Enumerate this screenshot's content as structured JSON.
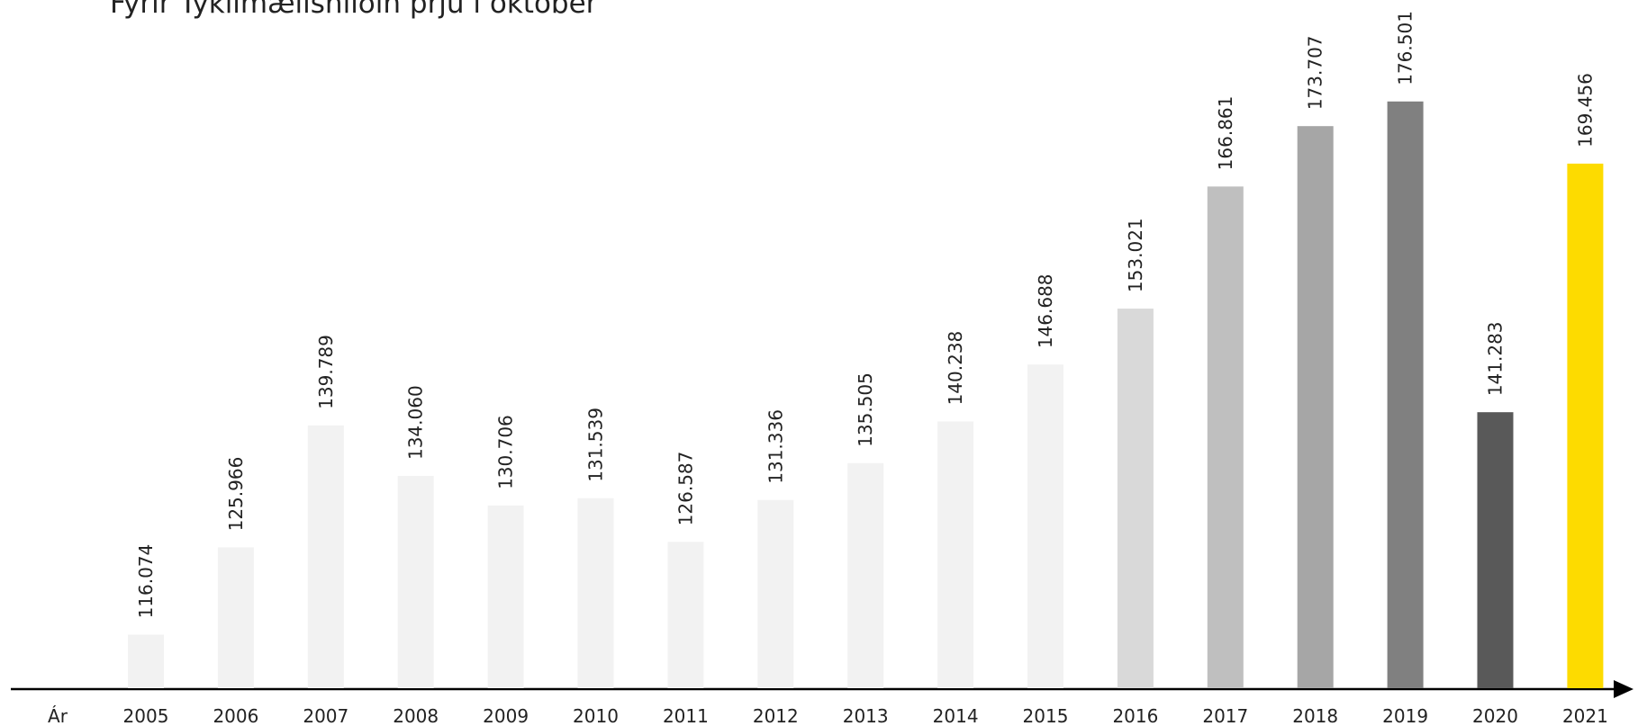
{
  "chart_data": {
    "type": "bar",
    "title": "Fyrir Tyklimælishliðin þrjú í október",
    "x_label": "Ár",
    "categories": [
      "2005",
      "2006",
      "2007",
      "2008",
      "2009",
      "2010",
      "2011",
      "2012",
      "2013",
      "2014",
      "2015",
      "2016",
      "2017",
      "2018",
      "2019",
      "2020",
      "2021"
    ],
    "values": [
      116074,
      125966,
      139789,
      134060,
      130706,
      131539,
      126587,
      131336,
      135505,
      140238,
      146688,
      153021,
      166861,
      173707,
      176501,
      141283,
      169456
    ],
    "value_labels": [
      "116.074",
      "125.966",
      "139.789",
      "134.060",
      "130.706",
      "131.539",
      "126.587",
      "131.336",
      "135.505",
      "140.238",
      "146.688",
      "153.021",
      "166.861",
      "173.707",
      "176.501",
      "141.283",
      "169.456"
    ],
    "colors": [
      "#f2f2f2",
      "#f2f2f2",
      "#f2f2f2",
      "#f2f2f2",
      "#f2f2f2",
      "#f2f2f2",
      "#f2f2f2",
      "#f2f2f2",
      "#f2f2f2",
      "#f2f2f2",
      "#f2f2f2",
      "#d9d9d9",
      "#bfbfbf",
      "#a6a6a6",
      "#808080",
      "#595959",
      "#fddb00"
    ],
    "ylim": [
      110000,
      188000
    ]
  }
}
